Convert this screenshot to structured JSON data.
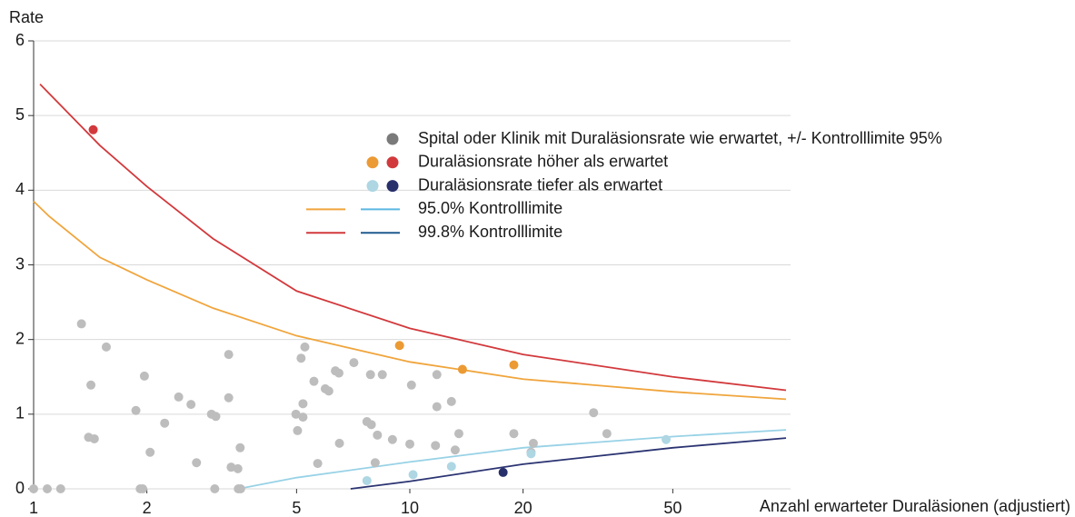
{
  "chart_data": {
    "type": "scatter",
    "y_label": "Rate",
    "x_label": "Anzahl erwarteter Duraläsionen (adjustiert)",
    "log_x": true,
    "grid": true,
    "xlim": [
      1,
      100
    ],
    "ylim": [
      0,
      6
    ],
    "xticks": [
      1,
      2,
      5,
      10,
      20,
      50
    ],
    "yticks": [
      0,
      1,
      2,
      3,
      4,
      5,
      6
    ],
    "series": [
      {
        "kind": "line",
        "color": "#f0a53c",
        "x": [
          1,
          1.1,
          1.5,
          2,
          3,
          5,
          10,
          20,
          50,
          100
        ],
        "values": [
          3.85,
          3.65,
          3.1,
          2.8,
          2.42,
          2.05,
          1.7,
          1.47,
          1.3,
          1.2
        ]
      },
      {
        "kind": "line",
        "color": "#d2393c",
        "x": [
          1.04,
          1.5,
          2,
          3,
          5,
          10,
          20,
          50,
          100
        ],
        "values": [
          5.42,
          4.6,
          4.05,
          3.35,
          2.65,
          2.15,
          1.8,
          1.5,
          1.32
        ]
      },
      {
        "kind": "line",
        "color": "#98d2e6",
        "x": [
          3.5,
          5,
          10,
          20,
          50,
          100
        ],
        "values": [
          0,
          0.15,
          0.36,
          0.55,
          0.7,
          0.79
        ]
      },
      {
        "kind": "line",
        "color": "#2b3472",
        "x": [
          6.96,
          10,
          20,
          50,
          100
        ],
        "values": [
          0,
          0.1,
          0.33,
          0.55,
          0.68
        ]
      },
      {
        "kind": "points",
        "color": "#bdbdbd",
        "x": [
          1,
          1.087,
          1.18,
          1.34,
          1.42,
          1.4,
          1.45,
          1.56,
          1.87,
          1.92,
          1.95,
          1.97,
          2.04,
          2.23,
          2.43,
          2.62,
          2.71,
          2.97,
          3.05,
          3.03,
          3.3,
          3.3,
          3.35,
          3.49,
          3.54,
          3.5,
          3.55,
          4.98,
          5.03,
          5.14,
          5.2,
          5.2,
          5.26,
          5.56,
          5.69,
          5.96,
          6.09,
          6.34,
          6.48,
          6.5,
          7.1,
          7.69,
          7.86,
          7.9,
          8.2,
          8.09,
          8.45,
          8.99,
          10.1,
          10.0,
          11.7,
          11.8,
          11.8,
          12.9,
          13.2,
          13.5,
          18.9,
          21.3,
          21.0,
          30.8,
          33.4
        ],
        "values": [
          0,
          0,
          0,
          2.21,
          1.39,
          0.69,
          0.67,
          1.9,
          1.05,
          0,
          0,
          1.51,
          0.49,
          0.88,
          1.23,
          1.13,
          0.35,
          1.0,
          0.97,
          0,
          1.8,
          1.22,
          0.29,
          0.27,
          0.55,
          0,
          0,
          1.0,
          0.78,
          1.75,
          0.96,
          1.14,
          1.9,
          1.44,
          0.34,
          1.34,
          1.31,
          1.58,
          1.55,
          0.61,
          1.69,
          0.9,
          1.53,
          0.86,
          0.72,
          0.35,
          1.53,
          0.66,
          1.39,
          0.6,
          0.58,
          1.53,
          1.1,
          1.17,
          0.52,
          0.74,
          0.74,
          0.61,
          0.49,
          1.02,
          0.74
        ]
      },
      {
        "kind": "points",
        "color": "#eb9a34",
        "x": [
          9.39,
          13.8,
          18.9
        ],
        "values": [
          1.92,
          1.6,
          1.66
        ]
      },
      {
        "kind": "points",
        "color": "#d2393c",
        "x": [
          1.44
        ],
        "values": [
          4.81
        ]
      },
      {
        "kind": "points",
        "color": "#aed6e3",
        "x": [
          7.69,
          10.2,
          12.9,
          21.0,
          48.0
        ],
        "values": [
          0.11,
          0.19,
          0.3,
          0.47,
          0.66
        ]
      },
      {
        "kind": "points",
        "color": "#27306b",
        "x": [
          17.7
        ],
        "values": [
          0.22
        ]
      }
    ],
    "legend": [
      {
        "label": "Spital oder Klinik mit Duraläsionsrate wie erwartet, +/- Kontrolllimite 95%",
        "marker": "dot",
        "colors": [
          "#7a7a7a"
        ]
      },
      {
        "label": "Duraläsionsrate höher als erwartet",
        "marker": "dot",
        "colors": [
          "#eb9a34",
          "#d2393c"
        ]
      },
      {
        "label": "Duraläsionsrate tiefer als erwartet",
        "marker": "dot",
        "colors": [
          "#aed6e3",
          "#27306b"
        ]
      },
      {
        "label": "95.0% Kontrolllimite",
        "marker": "line",
        "colors": [
          "#f0a53c",
          "#5bb8e3"
        ]
      },
      {
        "label": "99.8% Kontrolllimite",
        "marker": "line",
        "colors": [
          "#d2393c",
          "#1f5a8e"
        ]
      }
    ]
  }
}
